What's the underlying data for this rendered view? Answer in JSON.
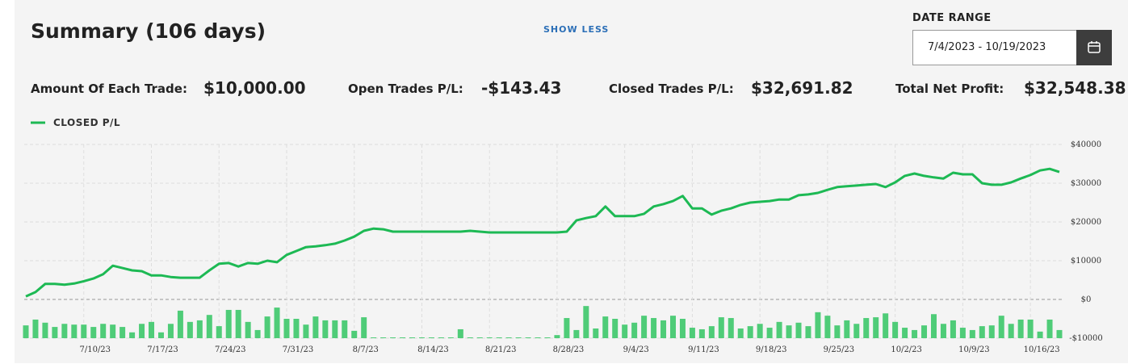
{
  "header": {
    "title": "Summary (106 days)",
    "toggle": "SHOW LESS"
  },
  "date_range": {
    "label": "DATE RANGE",
    "value": "7/4/2023 - 10/19/2023"
  },
  "stats": [
    {
      "label": "Amount Of Each Trade:",
      "value": "$10,000.00"
    },
    {
      "label": "Open Trades P/L:",
      "value": "-$143.43"
    },
    {
      "label": "Closed Trades P/L:",
      "value": "$32,691.82"
    },
    {
      "label": "Total Net Profit:",
      "value": "$32,548.38"
    }
  ],
  "chart_data": {
    "type": "line",
    "x": [
      "7/4/23",
      "7/5/23",
      "7/6/23",
      "7/7/23",
      "7/8/23",
      "7/9/23",
      "7/10/23",
      "7/11/23",
      "7/12/23",
      "7/13/23",
      "7/14/23",
      "7/15/23",
      "7/16/23",
      "7/17/23",
      "7/18/23",
      "7/19/23",
      "7/20/23",
      "7/21/23",
      "7/22/23",
      "7/23/23",
      "7/24/23",
      "7/25/23",
      "7/26/23",
      "7/27/23",
      "7/28/23",
      "7/29/23",
      "7/30/23",
      "7/31/23",
      "8/1/23",
      "8/2/23",
      "8/3/23",
      "8/4/23",
      "8/5/23",
      "8/6/23",
      "8/7/23",
      "8/8/23",
      "8/9/23",
      "8/10/23",
      "8/11/23",
      "8/12/23",
      "8/13/23",
      "8/14/23",
      "8/15/23",
      "8/16/23",
      "8/17/23",
      "8/18/23",
      "8/19/23",
      "8/20/23",
      "8/21/23",
      "8/22/23",
      "8/23/23",
      "8/24/23",
      "8/25/23",
      "8/26/23",
      "8/27/23",
      "8/28/23",
      "8/29/23",
      "8/30/23",
      "8/31/23",
      "9/1/23",
      "9/2/23",
      "9/3/23",
      "9/4/23",
      "9/5/23",
      "9/6/23",
      "9/7/23",
      "9/8/23",
      "9/9/23",
      "9/10/23",
      "9/11/23",
      "9/12/23",
      "9/13/23",
      "9/14/23",
      "9/15/23",
      "9/16/23",
      "9/17/23",
      "9/18/23",
      "9/19/23",
      "9/20/23",
      "9/21/23",
      "9/22/23",
      "9/23/23",
      "9/24/23",
      "9/25/23",
      "9/26/23",
      "9/27/23",
      "9/28/23",
      "9/29/23",
      "9/30/23",
      "10/1/23",
      "10/2/23",
      "10/3/23",
      "10/4/23",
      "10/5/23",
      "10/6/23",
      "10/7/23",
      "10/8/23",
      "10/9/23",
      "10/10/23",
      "10/11/23",
      "10/12/23",
      "10/13/23",
      "10/14/23",
      "10/15/23",
      "10/16/23",
      "10/17/23",
      "10/18/23",
      "10/19/23"
    ],
    "series": [
      {
        "name": "CLOSED P/L",
        "color": "#1db954",
        "values": [
          800,
          1900,
          4000,
          4000,
          3800,
          4100,
          4700,
          5400,
          6500,
          8700,
          8100,
          7500,
          7300,
          6200,
          6200,
          5800,
          5600,
          5600,
          5600,
          7500,
          9200,
          9400,
          8500,
          9400,
          9200,
          10000,
          9600,
          11500,
          12500,
          13500,
          13700,
          14000,
          14400,
          15200,
          16200,
          17700,
          18300,
          18100,
          17500,
          17500,
          17500,
          17500,
          17500,
          17500,
          17500,
          17500,
          17700,
          17500,
          17300,
          17300,
          17300,
          17300,
          17300,
          17300,
          17300,
          17300,
          17500,
          20400,
          21000,
          21500,
          24000,
          21500,
          21500,
          21500,
          22100,
          24000,
          24600,
          25400,
          26700,
          23500,
          23500,
          21900,
          22900,
          23500,
          24400,
          25000,
          25200,
          25400,
          25800,
          25800,
          26900,
          27100,
          27500,
          28300,
          29000,
          29200,
          29400,
          29600,
          29800,
          29000,
          30200,
          31900,
          32500,
          31900,
          31500,
          31200,
          32700,
          32300,
          32300,
          30000,
          29600,
          29600,
          30200,
          31200,
          32100,
          33300,
          33700,
          32900
        ]
      },
      {
        "type": "bar",
        "color": "#4fcc78",
        "values": [
          -6700,
          -5200,
          -6000,
          -7100,
          -6300,
          -6500,
          -6500,
          -7100,
          -6300,
          -6500,
          -7100,
          -8500,
          -6300,
          -5800,
          -8500,
          -6300,
          -2900,
          -5800,
          -5400,
          -4000,
          -6900,
          -2700,
          -2700,
          -5800,
          -7900,
          -4400,
          -2100,
          -5000,
          -5000,
          -6500,
          -4400,
          -5400,
          -5400,
          -5400,
          -8100,
          -4600,
          -9800,
          -9800,
          -9800,
          -9800,
          -9800,
          -9800,
          -9800,
          -9800,
          -9800,
          -7700,
          -9800,
          -9800,
          -9800,
          -9800,
          -9800,
          -9800,
          -9800,
          -9800,
          -9800,
          -9200,
          -4800,
          -7900,
          -1700,
          -7500,
          -4400,
          -5000,
          -6500,
          -6000,
          -4200,
          -4800,
          -5400,
          -4200,
          -5000,
          -7300,
          -7700,
          -6900,
          -4600,
          -4800,
          -7500,
          -6900,
          -6300,
          -7300,
          -5800,
          -6700,
          -6000,
          -6900,
          -3300,
          -4200,
          -6700,
          -5400,
          -6300,
          -4800,
          -4600,
          -3600,
          -5800,
          -7300,
          -7900,
          -6700,
          -3800,
          -6300,
          -5400,
          -7300,
          -7900,
          -6900,
          -6700,
          -4200,
          -6300,
          -5200,
          -5200,
          -8300,
          -5200,
          -7900
        ]
      }
    ],
    "xlim": [
      "7/4/23",
      "10/19/23"
    ],
    "xticks": [
      "7/10/23",
      "7/17/23",
      "7/24/23",
      "7/31/23",
      "8/7/23",
      "8/14/23",
      "8/21/23",
      "8/28/23",
      "9/4/23",
      "9/11/23",
      "9/18/23",
      "9/25/23",
      "10/2/23",
      "10/9/23",
      "10/16/23"
    ],
    "ylim": [
      -10000,
      40000
    ],
    "yticks": [
      {
        "value": -10000,
        "label": "-$10000"
      },
      {
        "value": 0,
        "label": "$0"
      },
      {
        "value": 10000,
        "label": "$10000"
      },
      {
        "value": 20000,
        "label": "$20000"
      },
      {
        "value": 30000,
        "label": "$30000"
      },
      {
        "value": 40000,
        "label": "$40000"
      }
    ],
    "grid": true
  }
}
